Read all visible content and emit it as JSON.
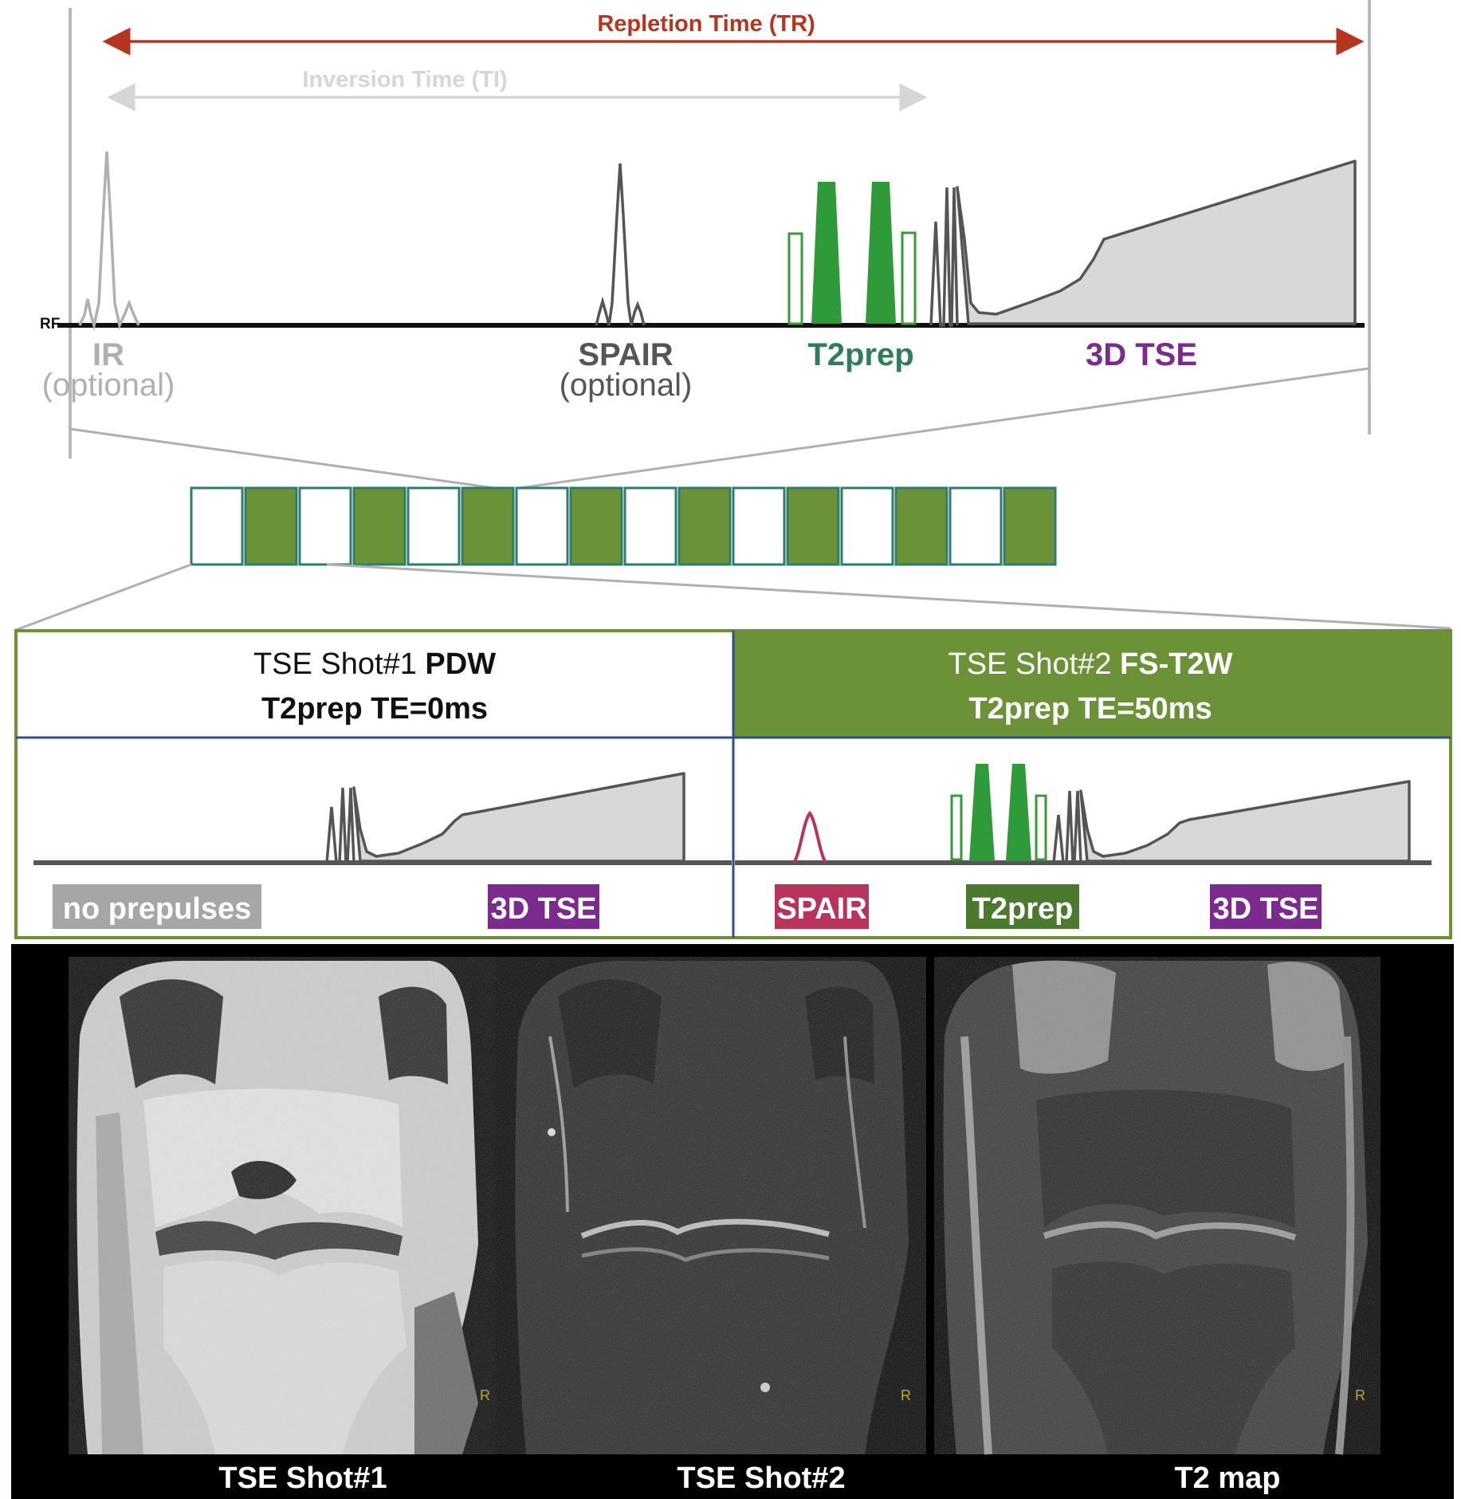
{
  "timing": {
    "tr_label": "Repletion Time (TR)",
    "ti_label": "Inversion Time (TI)",
    "rf_label": "RF"
  },
  "modules": {
    "ir": {
      "name": "IR",
      "note": "(optional)"
    },
    "spair": {
      "name": "SPAIR",
      "note": "(optional)"
    },
    "t2prep": {
      "name": "T2prep"
    },
    "tse": {
      "name": "3D TSE"
    }
  },
  "shots": {
    "shot1": {
      "title_prefix": "TSE Shot#1 ",
      "title_bold": "PDW",
      "subtitle": "T2prep TE=0ms",
      "labels": {
        "prepulse": "no prepulses",
        "tse": "3D TSE"
      }
    },
    "shot2": {
      "title_prefix": "TSE Shot#2 ",
      "title_bold": "FS-T2W",
      "subtitle": "T2prep TE=50ms",
      "labels": {
        "spair": "SPAIR",
        "t2prep": "T2prep",
        "tse": "3D TSE"
      }
    }
  },
  "images": {
    "captions": [
      "TSE Shot#1",
      "TSE Shot#2",
      "T2 map"
    ],
    "orientation_marker": "R"
  },
  "colors": {
    "tr": "#b5351f",
    "ti": "#d6d6d6",
    "t2prep": "#2e7d5b",
    "tse": "#7b2a8e",
    "shot_green": "#6b9237",
    "spair": "#b8345c",
    "gray_label": "#a6a6a6"
  }
}
